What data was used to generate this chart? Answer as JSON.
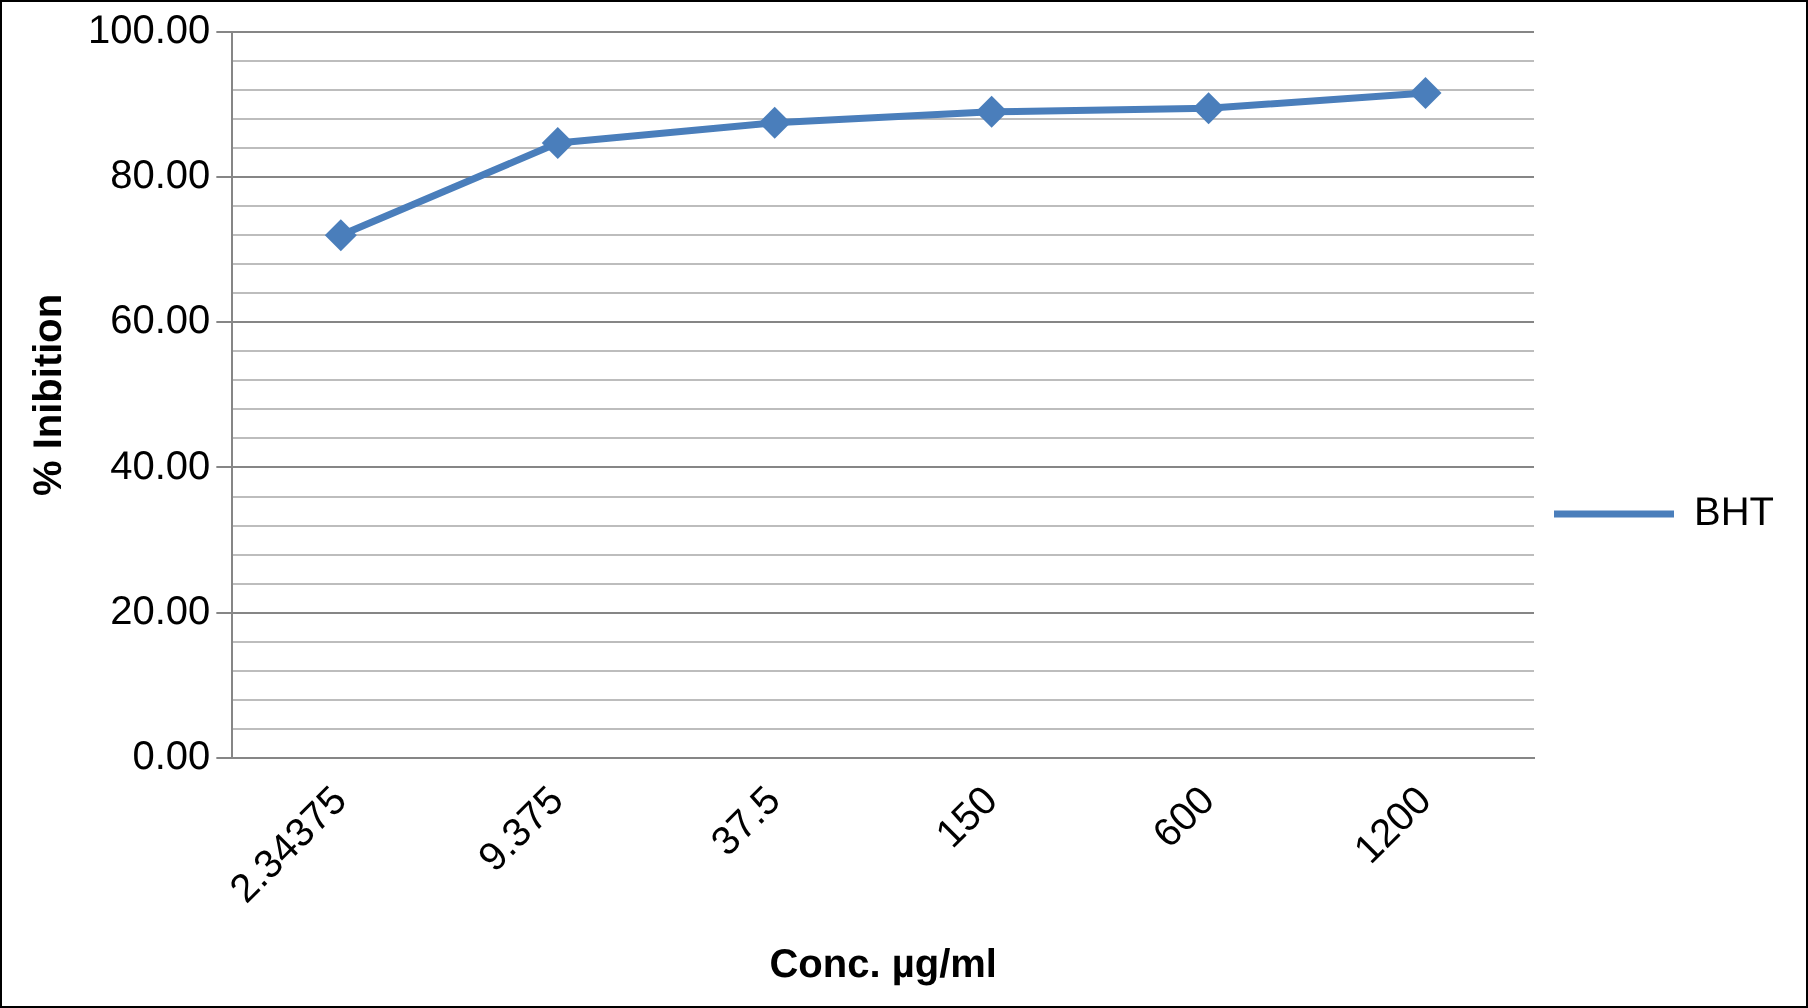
{
  "chart_data": {
    "type": "line",
    "xlabel": "Conc. µg/ml",
    "ylabel": "% Inibition",
    "categories": [
      "2.34375",
      "9.375",
      "37.5",
      "150",
      "600",
      "1200"
    ],
    "series": [
      {
        "name": "BHT",
        "color": "#4a7ebb",
        "values": [
          72.0,
          84.7,
          87.5,
          89.0,
          89.5,
          91.6
        ]
      }
    ],
    "ylim": [
      0,
      100
    ],
    "yticks": [
      {
        "value": 0,
        "label": "0.00"
      },
      {
        "value": 4,
        "label": null
      },
      {
        "value": 8,
        "label": null
      },
      {
        "value": 12,
        "label": null
      },
      {
        "value": 16,
        "label": null
      },
      {
        "value": 20,
        "label": "20.00"
      },
      {
        "value": 24,
        "label": null
      },
      {
        "value": 28,
        "label": null
      },
      {
        "value": 32,
        "label": null
      },
      {
        "value": 36,
        "label": null
      },
      {
        "value": 40,
        "label": "40.00"
      },
      {
        "value": 44,
        "label": null
      },
      {
        "value": 48,
        "label": null
      },
      {
        "value": 52,
        "label": null
      },
      {
        "value": 56,
        "label": null
      },
      {
        "value": 60,
        "label": "60.00"
      },
      {
        "value": 64,
        "label": null
      },
      {
        "value": 68,
        "label": null
      },
      {
        "value": 72,
        "label": null
      },
      {
        "value": 76,
        "label": null
      },
      {
        "value": 80,
        "label": "80.00"
      },
      {
        "value": 84,
        "label": null
      },
      {
        "value": 88,
        "label": null
      },
      {
        "value": 92,
        "label": null
      },
      {
        "value": 96,
        "label": null
      },
      {
        "value": 100,
        "label": "100.00"
      }
    ],
    "grid": "y",
    "legend": "right",
    "marker": "diamond",
    "line_style": "solid"
  }
}
